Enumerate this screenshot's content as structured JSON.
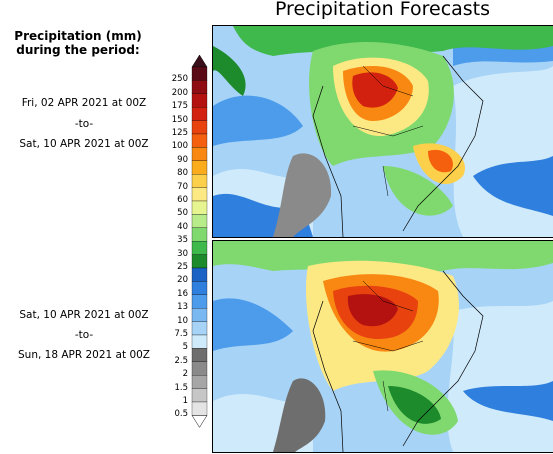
{
  "title": "Precipitation Forecasts",
  "legend": {
    "title_line1": "Precipitation (mm)",
    "title_line2": "during the period:",
    "ticks": [
      "250",
      "200",
      "175",
      "150",
      "125",
      "100",
      "90",
      "80",
      "70",
      "60",
      "50",
      "40",
      "35",
      "30",
      "25",
      "20",
      "16",
      "13",
      "10",
      "7.5",
      "5",
      "2.5",
      "2",
      "1.5",
      "1",
      "0.5"
    ],
    "colors": [
      "#5a0a14",
      "#8e0d12",
      "#b31210",
      "#d2210f",
      "#e8420f",
      "#f5600f",
      "#f98812",
      "#fbac1c",
      "#fcd04a",
      "#fde984",
      "#e6f590",
      "#b8ec8a",
      "#7fd96f",
      "#3fb84c",
      "#1d8a2c",
      "#1a62c4",
      "#2f7fde",
      "#4c9ceb",
      "#7ab8f2",
      "#a7d3f6",
      "#cfeafb",
      "#6e6e6e",
      "#8a8a8a",
      "#a6a6a6",
      "#c6c6c6",
      "#e4e4e4"
    ]
  },
  "periods": [
    {
      "start": "Fri, 02 APR 2021 at 00Z",
      "sep": "-to-",
      "end": "Sat, 10 APR 2021 at 00Z"
    },
    {
      "start": "Sat, 10 APR 2021 at 00Z",
      "sep": "-to-",
      "end": "Sun, 18 APR 2021 at 00Z"
    }
  ]
}
